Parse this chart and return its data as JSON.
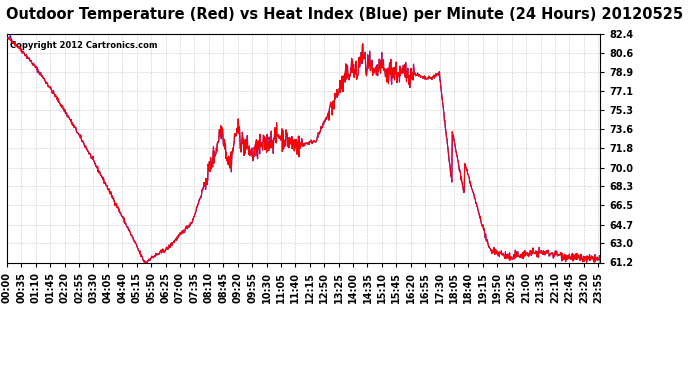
{
  "title": "Outdoor Temperature (Red) vs Heat Index (Blue) per Minute (24 Hours) 20120525",
  "copyright_text": "Copyright 2012 Cartronics.com",
  "line_color_red": "#FF0000",
  "line_color_blue": "#0000FF",
  "background_color": "#FFFFFF",
  "plot_bg_color": "#FFFFFF",
  "grid_color": "#C8C8C8",
  "ylim": [
    61.2,
    82.4
  ],
  "yticks": [
    61.2,
    63.0,
    64.7,
    66.5,
    68.3,
    70.0,
    71.8,
    73.6,
    75.3,
    77.1,
    78.9,
    80.6,
    82.4
  ],
  "title_fontsize": 10.5,
  "tick_fontsize": 7,
  "xlabel_rotation": 90,
  "xtick_minutes_step": 35
}
